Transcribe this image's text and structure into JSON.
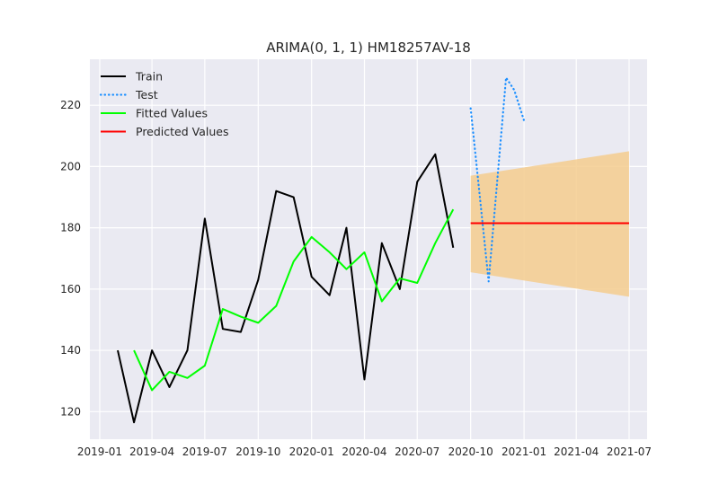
{
  "chart_data": {
    "type": "line",
    "title": "ARIMA(0, 1, 1) HM18257AV-18",
    "xlabel": "",
    "ylabel": "",
    "grid": true,
    "legend_placement": "top-left",
    "x_axis_type": "date",
    "xlim": [
      "2018-12-15",
      "2021-08-01"
    ],
    "ylim": [
      111,
      235
    ],
    "x_ticks": [
      "2019-01-01",
      "2019-04-01",
      "2019-07-01",
      "2019-10-01",
      "2020-01-01",
      "2020-04-01",
      "2020-07-01",
      "2020-10-01",
      "2021-01-01",
      "2021-04-01",
      "2021-07-01"
    ],
    "x_tick_labels": [
      "2019-01",
      "2019-04",
      "2019-07",
      "2019-10",
      "2020-01",
      "2020-04",
      "2020-07",
      "2020-10",
      "2021-01",
      "2021-04",
      "2021-07"
    ],
    "y_ticks": [
      120,
      140,
      160,
      180,
      200,
      220
    ],
    "y_tick_labels": [
      "120",
      "140",
      "160",
      "180",
      "200",
      "220"
    ],
    "colors": {
      "background": "#eaeaf2",
      "grid": "#ffffff",
      "band": "#f5cc8e"
    },
    "series": [
      {
        "name": "Train",
        "color": "#000000",
        "style": "solid",
        "x": [
          "2019-02-01",
          "2019-03-01",
          "2019-04-01",
          "2019-05-01",
          "2019-06-01",
          "2019-07-01",
          "2019-08-01",
          "2019-09-01",
          "2019-10-01",
          "2019-11-01",
          "2019-12-01",
          "2020-01-01",
          "2020-02-01",
          "2020-03-01",
          "2020-04-01",
          "2020-05-01",
          "2020-06-01",
          "2020-07-01",
          "2020-08-01",
          "2020-09-01"
        ],
        "values": [
          140,
          116.5,
          140,
          128,
          140,
          183,
          147,
          146,
          163,
          192,
          190,
          164,
          158,
          180,
          130.5,
          175,
          160,
          195,
          204,
          173.5
        ]
      },
      {
        "name": "Test",
        "color": "#1e90ff",
        "style": "dotted",
        "x": [
          "2020-10-01",
          "2020-11-01",
          "2020-12-01",
          "2020-12-15",
          "2021-01-01"
        ],
        "values": [
          219,
          162.5,
          229,
          225,
          215
        ]
      },
      {
        "name": "Fitted Values",
        "color": "#00ff00",
        "style": "solid",
        "x": [
          "2019-03-01",
          "2019-04-01",
          "2019-05-01",
          "2019-06-01",
          "2019-07-01",
          "2019-08-01",
          "2019-09-01",
          "2019-10-01",
          "2019-11-01",
          "2019-12-01",
          "2020-01-01",
          "2020-02-01",
          "2020-03-01",
          "2020-04-01",
          "2020-05-01",
          "2020-06-01",
          "2020-07-01",
          "2020-08-01",
          "2020-09-01"
        ],
        "values": [
          140,
          127,
          133,
          131,
          135,
          153.5,
          151,
          149,
          154.5,
          169,
          177,
          172,
          166.5,
          172,
          156,
          163.5,
          162,
          175,
          186
        ]
      },
      {
        "name": "Predicted Values",
        "color": "#ff0000",
        "style": "solid",
        "x": [
          "2020-10-01",
          "2021-07-01"
        ],
        "values": [
          181.5,
          181.5
        ]
      }
    ],
    "confidence_band": {
      "x": [
        "2020-10-01",
        "2021-07-01"
      ],
      "upper": [
        197,
        205
      ],
      "lower": [
        165.5,
        157.5
      ]
    }
  }
}
